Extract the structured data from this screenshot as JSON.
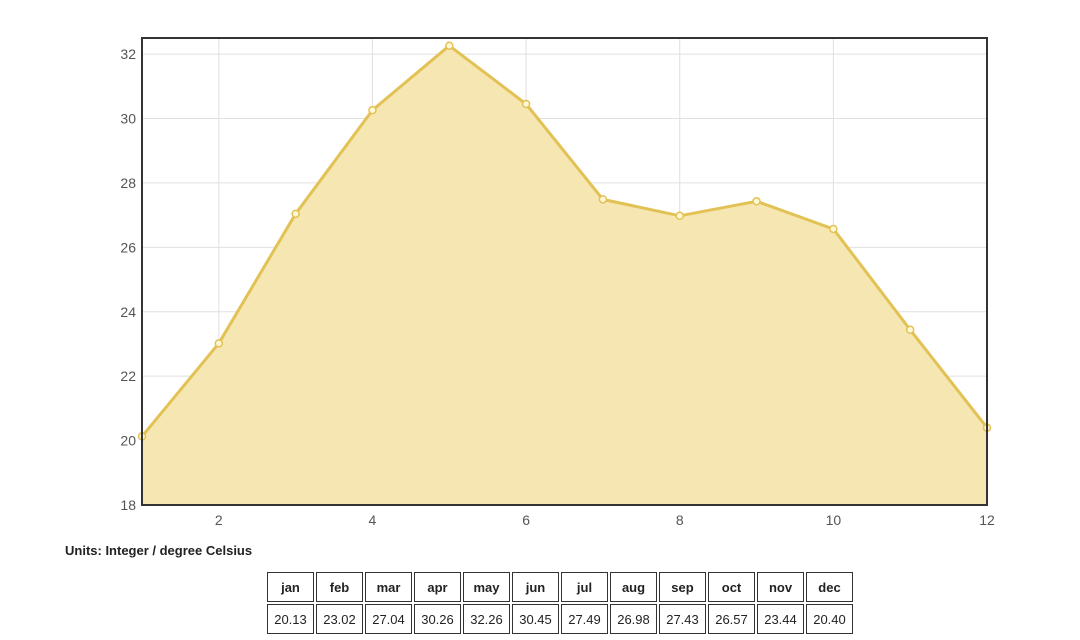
{
  "chart_data": {
    "type": "area",
    "title": "",
    "xlabel": "",
    "ylabel": "",
    "x": [
      1,
      2,
      3,
      4,
      5,
      6,
      7,
      8,
      9,
      10,
      11,
      12
    ],
    "series": [
      {
        "values": [
          20.13,
          23.02,
          27.04,
          30.26,
          32.26,
          30.45,
          27.49,
          26.98,
          27.43,
          26.57,
          23.44,
          20.4
        ]
      }
    ],
    "xlim": [
      1,
      12
    ],
    "ylim": [
      18,
      32.5
    ],
    "x_ticks": [
      "2",
      "4",
      "6",
      "8",
      "10",
      "12"
    ],
    "y_ticks": [
      "18",
      "20",
      "22",
      "24",
      "26",
      "28",
      "30",
      "32"
    ],
    "grid": true,
    "colors": {
      "fill": "#f5e6b2",
      "line": "#e2c255",
      "marker_fill": "#fff8d6",
      "grid": "#e0e0e0",
      "frame": "#333333"
    }
  },
  "units_note": "Units: Integer / degree Celsius",
  "table": {
    "months": [
      "jan",
      "feb",
      "mar",
      "apr",
      "may",
      "jun",
      "jul",
      "aug",
      "sep",
      "oct",
      "nov",
      "dec"
    ],
    "values": [
      "20.13",
      "23.02",
      "27.04",
      "30.26",
      "32.26",
      "30.45",
      "27.49",
      "26.98",
      "27.43",
      "26.57",
      "23.44",
      "20.40"
    ]
  }
}
